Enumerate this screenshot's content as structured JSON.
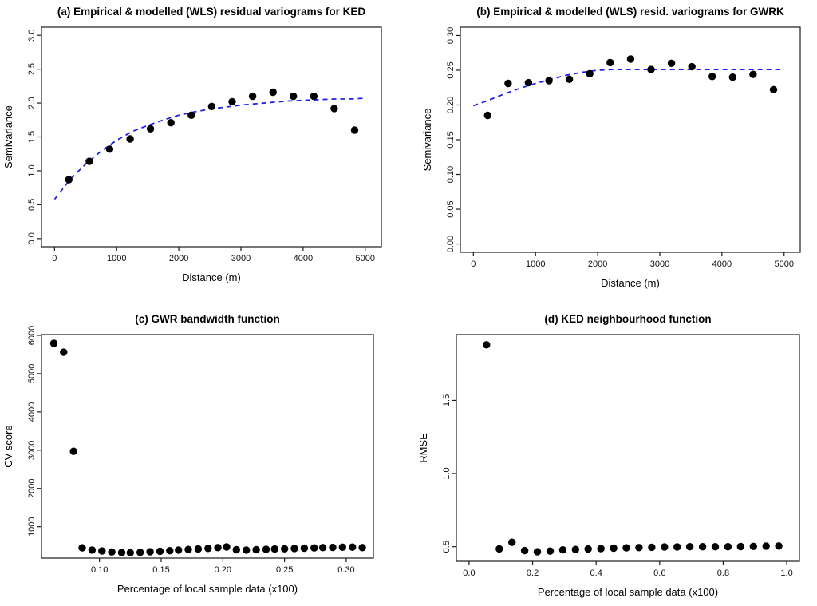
{
  "figure": {
    "background": "#ffffff",
    "point_color": "#000000",
    "model_line_color": "#2020ee",
    "axis_color": "#1a1a1a"
  },
  "chart_data": [
    {
      "key": "a",
      "type": "scatter",
      "title": "(a) Empirical & modelled (WLS) residual variograms for KED",
      "xlabel": "Distance (m)",
      "ylabel": "Semivariance",
      "xlim": [
        -210,
        5260
      ],
      "ylim": [
        -0.12,
        3.12
      ],
      "grid": false,
      "legend": null,
      "xticks": {
        "values": [
          0,
          1000,
          2000,
          3000,
          4000,
          5000
        ],
        "labels": [
          "0",
          "1000",
          "2000",
          "3000",
          "4000",
          "5000"
        ]
      },
      "yticks": {
        "values": [
          0,
          0.5,
          1.0,
          1.5,
          2.0,
          2.5,
          3.0
        ],
        "labels": [
          "0.0",
          "0.5",
          "1.0",
          "1.5",
          "2.0",
          "2.5",
          "3.0"
        ]
      },
      "points": {
        "name": "empirical-semivariance",
        "x": [
          230,
          559,
          887,
          1216,
          1544,
          1873,
          2201,
          2530,
          2859,
          3187,
          3516,
          3844,
          4173,
          4501,
          4830
        ],
        "y": [
          0.87,
          1.14,
          1.32,
          1.47,
          1.62,
          1.71,
          1.82,
          1.95,
          2.02,
          2.1,
          2.16,
          2.1,
          2.1,
          1.92,
          1.6
        ]
      },
      "model_line": {
        "name": "wls-model",
        "style": "dashed",
        "x": [
          0,
          250,
          500,
          750,
          1000,
          1250,
          1500,
          1750,
          2000,
          2250,
          2500,
          2750,
          3000,
          3250,
          3500,
          3750,
          4000,
          4250,
          4500,
          4750,
          5000
        ],
        "y": [
          0.58,
          0.87,
          1.1,
          1.29,
          1.45,
          1.58,
          1.67,
          1.75,
          1.82,
          1.87,
          1.91,
          1.94,
          1.97,
          1.99,
          2.01,
          2.03,
          2.04,
          2.05,
          2.06,
          2.06,
          2.07
        ]
      }
    },
    {
      "key": "b",
      "type": "scatter",
      "title": "(b) Empirical & modelled (WLS) resid. variograms for GWRK",
      "xlabel": "Distance (m)",
      "ylabel": "Semivariance",
      "xlim": [
        -210,
        5260
      ],
      "ylim": [
        -0.012,
        0.312
      ],
      "grid": false,
      "legend": null,
      "xticks": {
        "values": [
          0,
          1000,
          2000,
          3000,
          4000,
          5000
        ],
        "labels": [
          "0",
          "1000",
          "2000",
          "3000",
          "4000",
          "5000"
        ]
      },
      "yticks": {
        "values": [
          0,
          0.05,
          0.1,
          0.15,
          0.2,
          0.25,
          0.3
        ],
        "labels": [
          "0.00",
          "0.05",
          "0.10",
          "0.15",
          "0.20",
          "0.25",
          "0.30"
        ]
      },
      "points": {
        "name": "empirical-semivariance",
        "x": [
          230,
          559,
          887,
          1216,
          1544,
          1873,
          2201,
          2530,
          2859,
          3187,
          3516,
          3844,
          4173,
          4501,
          4830
        ],
        "y": [
          0.185,
          0.231,
          0.232,
          0.235,
          0.237,
          0.245,
          0.261,
          0.266,
          0.251,
          0.26,
          0.255,
          0.241,
          0.24,
          0.244,
          0.222
        ]
      },
      "model_line": {
        "name": "wls-model",
        "style": "dashed",
        "x": [
          0,
          250,
          500,
          750,
          1000,
          1250,
          1500,
          1750,
          2000,
          2250,
          2500,
          3000,
          3500,
          4000,
          4500,
          5000
        ],
        "y": [
          0.199,
          0.207,
          0.216,
          0.224,
          0.231,
          0.237,
          0.243,
          0.247,
          0.25,
          0.251,
          0.251,
          0.251,
          0.251,
          0.251,
          0.251,
          0.251
        ]
      }
    },
    {
      "key": "c",
      "type": "scatter",
      "title": "(c) GWR bandwidth function",
      "xlabel": "Percentage of local sample data (x100)",
      "ylabel": "CV score",
      "xlim": [
        0.053,
        0.322
      ],
      "ylim": [
        180,
        6020
      ],
      "grid": false,
      "legend": null,
      "xticks": {
        "values": [
          0.1,
          0.15,
          0.2,
          0.25,
          0.3
        ],
        "labels": [
          "0.10",
          "0.15",
          "0.20",
          "0.25",
          "0.30"
        ]
      },
      "yticks": {
        "values": [
          1000,
          2000,
          3000,
          4000,
          5000,
          6000
        ],
        "labels": [
          "1000",
          "2000",
          "3000",
          "4000",
          "5000",
          "6000"
        ]
      },
      "points": {
        "name": "cv-score",
        "x": [
          0.063,
          0.071,
          0.079,
          0.086,
          0.094,
          0.102,
          0.11,
          0.118,
          0.125,
          0.133,
          0.141,
          0.149,
          0.157,
          0.164,
          0.172,
          0.18,
          0.188,
          0.196,
          0.203,
          0.211,
          0.219,
          0.227,
          0.235,
          0.242,
          0.25,
          0.258,
          0.266,
          0.274,
          0.281,
          0.289,
          0.297,
          0.305,
          0.313
        ],
        "y": [
          5790,
          5560,
          2970,
          450,
          390,
          365,
          340,
          325,
          320,
          330,
          345,
          360,
          375,
          390,
          405,
          420,
          435,
          455,
          475,
          400,
          390,
          400,
          410,
          418,
          425,
          432,
          440,
          448,
          455,
          460,
          465,
          468,
          455
        ]
      },
      "model_line": null
    },
    {
      "key": "d",
      "type": "scatter",
      "title": "(d) KED neighbourhood function",
      "xlabel": "Percentage of local sample data (x100)",
      "ylabel": "RMSE",
      "xlim": [
        -0.04,
        1.04
      ],
      "ylim": [
        0.4,
        1.95
      ],
      "grid": false,
      "legend": null,
      "xticks": {
        "values": [
          0.0,
          0.2,
          0.4,
          0.6,
          0.8,
          1.0
        ],
        "labels": [
          "0.0",
          "0.2",
          "0.4",
          "0.6",
          "0.8",
          "1.0"
        ]
      },
      "yticks": {
        "values": [
          0.5,
          1.0,
          1.5
        ],
        "labels": [
          "0.5",
          "1.0",
          "1.5"
        ]
      },
      "points": {
        "name": "rmse",
        "x": [
          0.055,
          0.095,
          0.135,
          0.175,
          0.215,
          0.255,
          0.295,
          0.335,
          0.375,
          0.415,
          0.455,
          0.495,
          0.535,
          0.575,
          0.615,
          0.655,
          0.695,
          0.735,
          0.775,
          0.815,
          0.855,
          0.895,
          0.935,
          0.975
        ],
        "y": [
          1.88,
          0.485,
          0.53,
          0.473,
          0.465,
          0.47,
          0.478,
          0.481,
          0.484,
          0.487,
          0.49,
          0.492,
          0.494,
          0.496,
          0.498,
          0.499,
          0.5,
          0.5,
          0.5,
          0.5,
          0.501,
          0.502,
          0.504,
          0.505
        ]
      },
      "model_line": null
    }
  ]
}
